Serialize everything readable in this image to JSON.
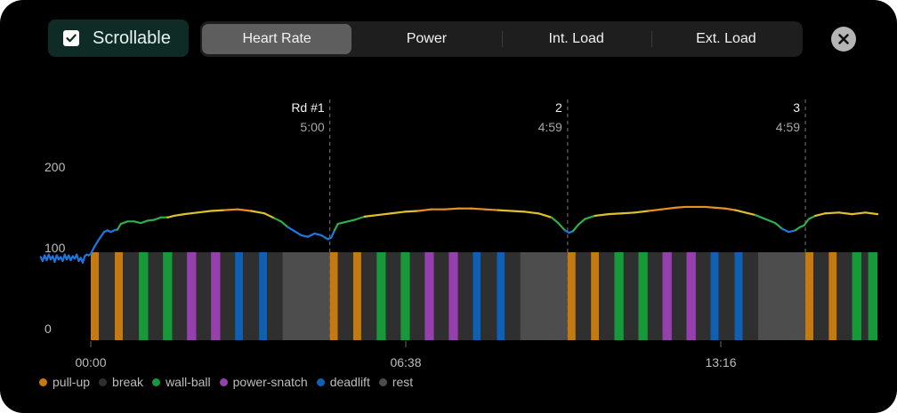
{
  "scroll_toggle": {
    "label": "Scrollable",
    "checked": true
  },
  "tabs": [
    {
      "label": "Heart Rate",
      "active": true
    },
    {
      "label": "Power",
      "active": false
    },
    {
      "label": "Int. Load",
      "active": false
    },
    {
      "label": "Ext. Load",
      "active": false
    }
  ],
  "close_icon": "close-icon",
  "chart_data": {
    "type": "line",
    "y_ticks": [
      "200",
      "100",
      "0"
    ],
    "ylim": [
      0,
      200
    ],
    "x_ticks": [
      "00:00",
      "06:38",
      "13:16"
    ],
    "xlim_seconds": [
      0,
      1178
    ],
    "round_markers": [
      {
        "label": "Rd #1",
        "time": "5:00",
        "at_seconds": 358
      },
      {
        "label": "2",
        "time": "4:59",
        "at_seconds": 714
      },
      {
        "label": "3",
        "time": "4:59",
        "at_seconds": 1070
      }
    ],
    "heart_rate_points": [
      [
        -75,
        93
      ],
      [
        -72,
        88
      ],
      [
        -69,
        95
      ],
      [
        -66,
        89
      ],
      [
        -63,
        96
      ],
      [
        -60,
        90
      ],
      [
        -57,
        94
      ],
      [
        -54,
        87
      ],
      [
        -51,
        95
      ],
      [
        -48,
        90
      ],
      [
        -45,
        93
      ],
      [
        -42,
        88
      ],
      [
        -39,
        96
      ],
      [
        -36,
        90
      ],
      [
        -33,
        95
      ],
      [
        -30,
        89
      ],
      [
        -27,
        94
      ],
      [
        -24,
        91
      ],
      [
        -21,
        96
      ],
      [
        -18,
        88
      ],
      [
        -15,
        92
      ],
      [
        -12,
        86
      ],
      [
        -9,
        94
      ],
      [
        -6,
        96
      ],
      [
        -3,
        95
      ],
      [
        0,
        97
      ],
      [
        5,
        105
      ],
      [
        10,
        112
      ],
      [
        15,
        118
      ],
      [
        20,
        124
      ],
      [
        25,
        126
      ],
      [
        30,
        124
      ],
      [
        35,
        126
      ],
      [
        40,
        127
      ],
      [
        45,
        134
      ],
      [
        55,
        137
      ],
      [
        65,
        137
      ],
      [
        75,
        135
      ],
      [
        85,
        138
      ],
      [
        95,
        139
      ],
      [
        105,
        142
      ],
      [
        115,
        142
      ],
      [
        125,
        144
      ],
      [
        140,
        146
      ],
      [
        160,
        148
      ],
      [
        180,
        150
      ],
      [
        200,
        151
      ],
      [
        220,
        152
      ],
      [
        240,
        150
      ],
      [
        260,
        147
      ],
      [
        275,
        141
      ],
      [
        285,
        137
      ],
      [
        295,
        130
      ],
      [
        305,
        125
      ],
      [
        315,
        120
      ],
      [
        325,
        118
      ],
      [
        335,
        122
      ],
      [
        345,
        120
      ],
      [
        355,
        115
      ],
      [
        360,
        117
      ],
      [
        365,
        126
      ],
      [
        370,
        134
      ],
      [
        380,
        136
      ],
      [
        395,
        139
      ],
      [
        410,
        143
      ],
      [
        430,
        145
      ],
      [
        450,
        147
      ],
      [
        470,
        149
      ],
      [
        490,
        150
      ],
      [
        510,
        152
      ],
      [
        530,
        152
      ],
      [
        550,
        153
      ],
      [
        570,
        153
      ],
      [
        590,
        152
      ],
      [
        610,
        151
      ],
      [
        630,
        150
      ],
      [
        650,
        149
      ],
      [
        670,
        147
      ],
      [
        690,
        142
      ],
      [
        700,
        135
      ],
      [
        710,
        126
      ],
      [
        716,
        123
      ],
      [
        722,
        125
      ],
      [
        730,
        133
      ],
      [
        740,
        140
      ],
      [
        755,
        144
      ],
      [
        775,
        146
      ],
      [
        795,
        147
      ],
      [
        815,
        148
      ],
      [
        835,
        150
      ],
      [
        855,
        152
      ],
      [
        875,
        154
      ],
      [
        890,
        155
      ],
      [
        905,
        155
      ],
      [
        920,
        155
      ],
      [
        935,
        154
      ],
      [
        950,
        153
      ],
      [
        965,
        151
      ],
      [
        980,
        148
      ],
      [
        995,
        145
      ],
      [
        1010,
        140
      ],
      [
        1025,
        135
      ],
      [
        1035,
        128
      ],
      [
        1045,
        124
      ],
      [
        1055,
        126
      ],
      [
        1062,
        130
      ],
      [
        1068,
        132
      ],
      [
        1075,
        140
      ],
      [
        1085,
        144
      ],
      [
        1100,
        147
      ],
      [
        1120,
        148
      ],
      [
        1140,
        146
      ],
      [
        1160,
        148
      ],
      [
        1178,
        146
      ]
    ],
    "hr_color_stops": [
      {
        "max_bpm": 128,
        "color": "#1e78dc"
      },
      {
        "max_bpm": 143,
        "color": "#2eae4d"
      },
      {
        "max_bpm": 151,
        "color": "#e1c02d"
      },
      {
        "max_bpm": 999,
        "color": "#ea8f22"
      }
    ],
    "activity_blocks": [
      {
        "type": "pull-up",
        "start": 0,
        "end": 12
      },
      {
        "type": "break",
        "start": 12,
        "end": 36
      },
      {
        "type": "pull-up",
        "start": 36,
        "end": 48
      },
      {
        "type": "break",
        "start": 48,
        "end": 72
      },
      {
        "type": "wall-ball",
        "start": 72,
        "end": 86
      },
      {
        "type": "break",
        "start": 86,
        "end": 108
      },
      {
        "type": "wall-ball",
        "start": 108,
        "end": 122
      },
      {
        "type": "break",
        "start": 122,
        "end": 144
      },
      {
        "type": "power-snatch",
        "start": 144,
        "end": 158
      },
      {
        "type": "break",
        "start": 158,
        "end": 180
      },
      {
        "type": "power-snatch",
        "start": 180,
        "end": 194
      },
      {
        "type": "break",
        "start": 194,
        "end": 216
      },
      {
        "type": "deadlift",
        "start": 216,
        "end": 228
      },
      {
        "type": "break",
        "start": 228,
        "end": 252
      },
      {
        "type": "deadlift",
        "start": 252,
        "end": 264
      },
      {
        "type": "break",
        "start": 264,
        "end": 287
      },
      {
        "type": "rest",
        "start": 287,
        "end": 358
      },
      {
        "type": "pull-up",
        "start": 358,
        "end": 370
      },
      {
        "type": "break",
        "start": 370,
        "end": 393
      },
      {
        "type": "pull-up",
        "start": 393,
        "end": 405
      },
      {
        "type": "break",
        "start": 405,
        "end": 428
      },
      {
        "type": "wall-ball",
        "start": 428,
        "end": 442
      },
      {
        "type": "break",
        "start": 442,
        "end": 464
      },
      {
        "type": "wall-ball",
        "start": 464,
        "end": 478
      },
      {
        "type": "break",
        "start": 478,
        "end": 500
      },
      {
        "type": "power-snatch",
        "start": 500,
        "end": 514
      },
      {
        "type": "break",
        "start": 514,
        "end": 536
      },
      {
        "type": "power-snatch",
        "start": 536,
        "end": 550
      },
      {
        "type": "break",
        "start": 550,
        "end": 572
      },
      {
        "type": "deadlift",
        "start": 572,
        "end": 584
      },
      {
        "type": "break",
        "start": 584,
        "end": 608
      },
      {
        "type": "deadlift",
        "start": 608,
        "end": 620
      },
      {
        "type": "break",
        "start": 620,
        "end": 643
      },
      {
        "type": "rest",
        "start": 643,
        "end": 714
      },
      {
        "type": "pull-up",
        "start": 714,
        "end": 726
      },
      {
        "type": "break",
        "start": 726,
        "end": 749
      },
      {
        "type": "pull-up",
        "start": 749,
        "end": 761
      },
      {
        "type": "break",
        "start": 761,
        "end": 784
      },
      {
        "type": "wall-ball",
        "start": 784,
        "end": 798
      },
      {
        "type": "break",
        "start": 798,
        "end": 820
      },
      {
        "type": "wall-ball",
        "start": 820,
        "end": 834
      },
      {
        "type": "break",
        "start": 834,
        "end": 856
      },
      {
        "type": "power-snatch",
        "start": 856,
        "end": 870
      },
      {
        "type": "break",
        "start": 870,
        "end": 892
      },
      {
        "type": "power-snatch",
        "start": 892,
        "end": 906
      },
      {
        "type": "break",
        "start": 906,
        "end": 928
      },
      {
        "type": "deadlift",
        "start": 928,
        "end": 940
      },
      {
        "type": "break",
        "start": 940,
        "end": 964
      },
      {
        "type": "deadlift",
        "start": 964,
        "end": 976
      },
      {
        "type": "break",
        "start": 976,
        "end": 999
      },
      {
        "type": "rest",
        "start": 999,
        "end": 1070
      },
      {
        "type": "pull-up",
        "start": 1070,
        "end": 1082
      },
      {
        "type": "break",
        "start": 1082,
        "end": 1105
      },
      {
        "type": "pull-up",
        "start": 1105,
        "end": 1117
      },
      {
        "type": "break",
        "start": 1117,
        "end": 1140
      },
      {
        "type": "wall-ball",
        "start": 1140,
        "end": 1154
      },
      {
        "type": "break",
        "start": 1154,
        "end": 1164
      },
      {
        "type": "wall-ball",
        "start": 1164,
        "end": 1178
      }
    ]
  },
  "legend": [
    {
      "label": "pull-up",
      "color": "#c47a10"
    },
    {
      "label": "break",
      "color": "#2f2f2f"
    },
    {
      "label": "wall-ball",
      "color": "#17993a"
    },
    {
      "label": "power-snatch",
      "color": "#9540ad"
    },
    {
      "label": "deadlift",
      "color": "#0f5fb3"
    },
    {
      "label": "rest",
      "color": "#4d4d4d"
    }
  ]
}
